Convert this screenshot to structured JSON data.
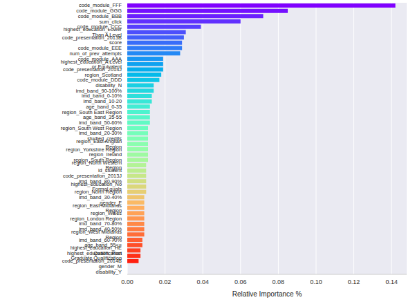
{
  "chart_data": {
    "type": "bar",
    "orientation": "horizontal",
    "x_label": "Relative Importance %",
    "categories": [
      "code_module_FFF",
      "code_module_GGG",
      "code_module_BBB",
      "sum_click",
      "code_module_CCC",
      "highest_education_Lower Than A Level",
      "code_presentation_2013B",
      "score",
      "code_module_EEE",
      "num_of_prev_attempts",
      "code_module_AAA",
      "highest_education_A Level or Equivalent",
      "code_presentation_2014J",
      "region_Scotland",
      "code_module_DDD",
      "disability_N",
      "imd_band_90-100%",
      "imd_band_0-10%",
      "imd_band_10-20",
      "age_band_0-35",
      "region_South East Region",
      "age_band_35-55",
      "imd_band_50-60%",
      "region_South West Region",
      "imd_band_20-30%",
      "studied_credits",
      "region_East Anglian Region",
      "region_Yorkshire Region",
      "region_Ireland",
      "region_South Region",
      "region_North Western Region",
      "id_student",
      "code_presentation_2013J",
      "imd_band_80-90%",
      "highest_education_No Formal quals",
      "region_North Region",
      "imd_band_30-40%",
      "gender_F",
      "region_East Midlands Region",
      "region_Wales",
      "region_London Region",
      "imd_band_70-80%",
      "imd_band_40-50%",
      "region_West Midlands Region",
      "imd_band_60-70%",
      "age_band_55<=",
      "highest_education_HE Qualification",
      "highest_education_Post Graduate Qualification",
      "code_presentation_2014B",
      "gender_M",
      "disability_Y"
    ],
    "values": [
      0.142,
      0.085,
      0.072,
      0.06,
      0.039,
      0.031,
      0.03,
      0.029,
      0.029,
      0.028,
      0.019,
      0.019,
      0.019,
      0.018,
      0.017,
      0.014,
      0.014,
      0.013,
      0.013,
      0.012,
      0.012,
      0.012,
      0.012,
      0.011,
      0.011,
      0.011,
      0.011,
      0.011,
      0.011,
      0.011,
      0.01,
      0.01,
      0.01,
      0.01,
      0.01,
      0.01,
      0.009,
      0.009,
      0.009,
      0.009,
      0.009,
      0.009,
      0.009,
      0.009,
      0.008,
      0.008,
      0.007,
      0.007,
      0.006,
      0,
      0
    ],
    "colors": [
      "#8000ff",
      "#7510ff",
      "#6b20fe",
      "#6130fe",
      "#573ffd",
      "#4d4ffc",
      "#425efa",
      "#386df9",
      "#2e7bf7",
      "#2489f5",
      "#1996f3",
      "#0fa2f0",
      "#05aeed",
      "#05baea",
      "#0fc5e7",
      "#1ad0e3",
      "#24d7df",
      "#2edfdb",
      "#38e7d7",
      "#42edd3",
      "#4df3ce",
      "#57f7c9",
      "#61fac4",
      "#6bfdbf",
      "#75feba",
      "#80ffb4",
      "#8afeaf",
      "#94fda8",
      "#9efaa2",
      "#a8f79c",
      "#b3f396",
      "#bded8f",
      "#c7e789",
      "#d1df82",
      "#dbd77b",
      "#e6ce74",
      "#f0c56d",
      "#faba65",
      "#ffae5e",
      "#ffa256",
      "#ff964f",
      "#ff8947",
      "#ff7b3f",
      "#ff6d38",
      "#ff5e30",
      "#ff4f28",
      "#ff3f20",
      "#ff3018",
      "#ff2010",
      "#ff1008",
      "#ff0000"
    ],
    "xlim": [
      0,
      0.148
    ],
    "xticks": [
      {
        "value": 0,
        "label": "0.00"
      },
      {
        "value": 0.02,
        "label": "0.02"
      },
      {
        "value": 0.04,
        "label": "0.04"
      },
      {
        "value": 0.06,
        "label": "0.06"
      },
      {
        "value": 0.08,
        "label": "0.08"
      },
      {
        "value": 0.1,
        "label": "0.10"
      },
      {
        "value": 0.12,
        "label": "0.12"
      },
      {
        "value": 0.14,
        "label": "0.14"
      }
    ],
    "grid": true
  }
}
